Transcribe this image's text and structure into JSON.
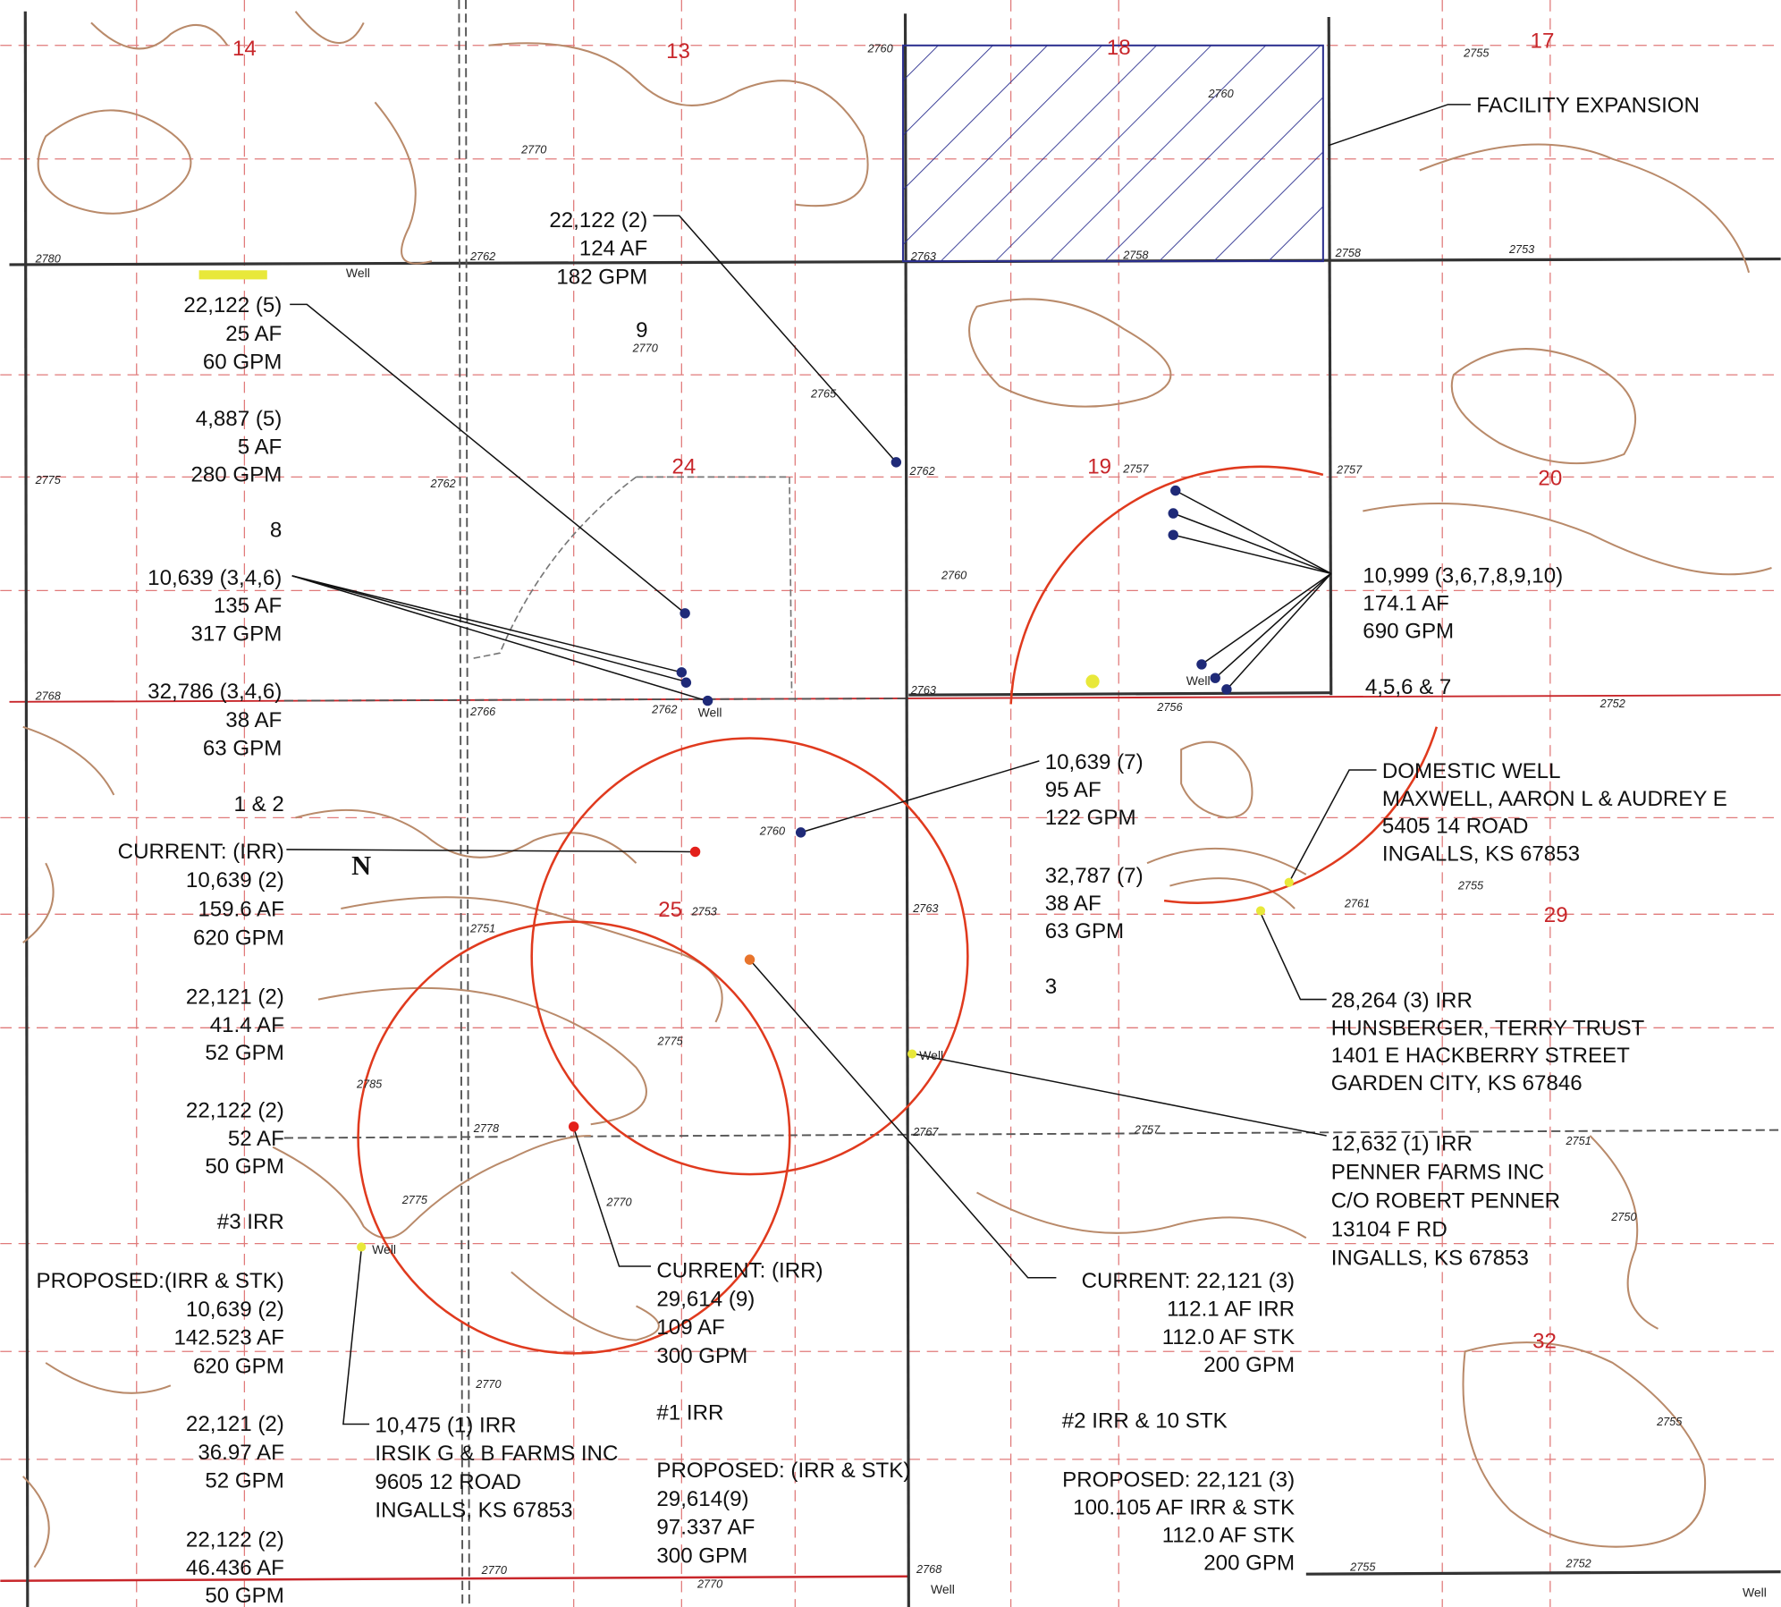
{
  "section_numbers": [
    "14",
    "13",
    "18",
    "17",
    "24",
    "19",
    "20",
    "25",
    "29",
    "32"
  ],
  "tract_numbers": [
    "9",
    "8",
    "3",
    "1 & 2"
  ],
  "north_label": "N",
  "elevation_labels": [
    "2760",
    "2780",
    "2762",
    "2763",
    "2758",
    "2758",
    "2753",
    "2755",
    "2775",
    "2762",
    "2762",
    "2757",
    "2757",
    "2763",
    "2768",
    "2766",
    "2762",
    "2756",
    "2752",
    "2763",
    "2761",
    "2753",
    "2751",
    "2778",
    "2767",
    "2757",
    "2751",
    "2770",
    "2770",
    "2770",
    "2768",
    "2755",
    "2752",
    "2755",
    "2760",
    "2770",
    "2765",
    "2770",
    "2760",
    "2760",
    "2785",
    "2775",
    "2775",
    "2770",
    "2750",
    "2755"
  ],
  "well_labels": [
    "Well",
    "Well",
    "Well",
    "Well",
    "Well",
    "Well",
    "Well"
  ],
  "annotations": [
    {
      "lines": [
        "22,122 (2)",
        "124 AF",
        "182 GPM"
      ]
    },
    {
      "lines": [
        "22,122 (5)",
        "25 AF",
        "60 GPM"
      ]
    },
    {
      "lines": [
        "4,887 (5)",
        "5 AF",
        "280 GPM"
      ]
    },
    {
      "lines": [
        "10,639 (3,4,6)",
        "135 AF",
        "317 GPM"
      ]
    },
    {
      "lines": [
        "32,786 (3,4,6)",
        "38 AF",
        "63 GPM"
      ]
    },
    {
      "lines": [
        "CURRENT: (IRR)",
        "10,639 (2)",
        "159.6 AF",
        "620 GPM"
      ]
    },
    {
      "lines": [
        "22,121 (2)",
        "41.4 AF",
        "52 GPM"
      ]
    },
    {
      "lines": [
        "22,122 (2)",
        "52 AF",
        "50 GPM"
      ]
    },
    {
      "lines": [
        "#3 IRR"
      ]
    },
    {
      "lines": [
        "PROPOSED:(IRR & STK)",
        "10,639 (2)",
        "142.523 AF",
        "620 GPM"
      ]
    },
    {
      "lines": [
        "22,121 (2)",
        "36.97 AF",
        "52 GPM"
      ]
    },
    {
      "lines": [
        "22,122 (2)",
        "46.436 AF",
        "50 GPM"
      ]
    },
    {
      "lines": [
        "10,475 (1) IRR",
        "IRSIK G & B FARMS INC",
        "9605 12 ROAD",
        "INGALLS, KS 67853"
      ]
    },
    {
      "lines": [
        "CURRENT: (IRR)",
        "29,614 (9)",
        "109 AF",
        "300 GPM"
      ]
    },
    {
      "lines": [
        "#1 IRR"
      ]
    },
    {
      "lines": [
        "PROPOSED: (IRR & STK)",
        "29,614(9)",
        "97.337 AF",
        "300 GPM"
      ]
    },
    {
      "lines": [
        "CURRENT: 22,121 (3)",
        "112.1 AF IRR",
        "112.0 AF STK",
        "200 GPM"
      ]
    },
    {
      "lines": [
        "#2 IRR & 10 STK"
      ]
    },
    {
      "lines": [
        "PROPOSED: 22,121 (3)",
        "100.105 AF IRR & STK",
        "112.0 AF STK",
        "200 GPM"
      ]
    },
    {
      "lines": [
        "10,639 (7)",
        "95 AF",
        "122 GPM"
      ]
    },
    {
      "lines": [
        "32,787 (7)",
        "38 AF",
        "63 GPM"
      ]
    },
    {
      "lines": [
        "10,999 (3,6,7,8,9,10)",
        "174.1 AF",
        "690 GPM"
      ]
    },
    {
      "lines": [
        "4,5,6 & 7"
      ]
    },
    {
      "lines": [
        "DOMESTIC WELL",
        "MAXWELL, AARON L & AUDREY E",
        "5405 14 ROAD",
        "INGALLS, KS 67853"
      ]
    },
    {
      "lines": [
        "28,264 (3) IRR",
        "HUNSBERGER, TERRY TRUST",
        "1401 E HACKBERRY STREET",
        "GARDEN CITY, KS 67846"
      ]
    },
    {
      "lines": [
        "12,632 (1) IRR",
        "PENNER FARMS INC",
        "C/O ROBERT PENNER",
        "13104 F RD",
        "INGALLS, KS 67853"
      ]
    },
    {
      "lines": [
        "FACILITY EXPANSION"
      ]
    }
  ]
}
